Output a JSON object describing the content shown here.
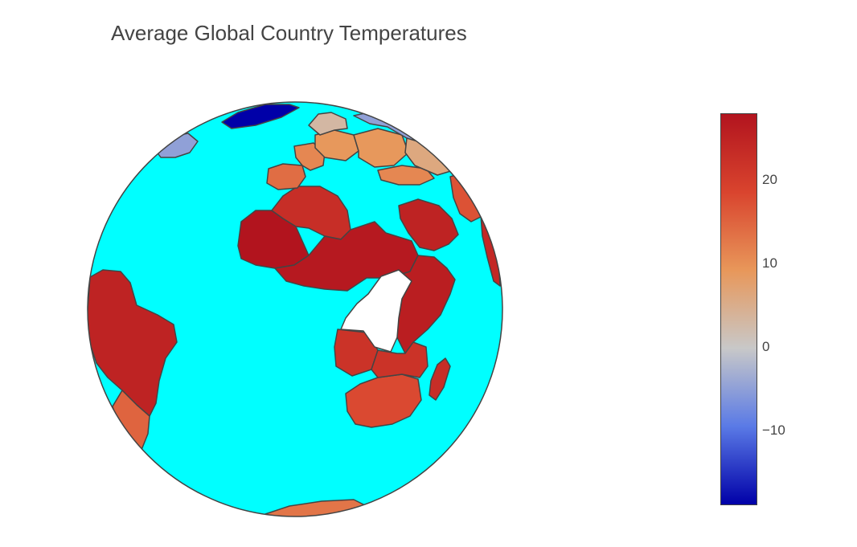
{
  "chart_data": {
    "type": "choropleth",
    "title": "Average Global Country Temperatures",
    "projection": "orthographic",
    "ocean_color": "#00ffff",
    "colorscale": [
      "#0000a8",
      "#5a7ae6",
      "#c8c8c8",
      "#e8975a",
      "#d9442e",
      "#b2141e"
    ],
    "colorbar": {
      "range": [
        -19,
        28
      ],
      "tick_values": [
        20,
        10,
        0,
        -10
      ],
      "tick_labels": [
        "20",
        "10",
        "0",
        "−10"
      ]
    },
    "regions": [
      {
        "name": "Brazil",
        "value": 25
      },
      {
        "name": "Nigeria",
        "value": 27
      },
      {
        "name": "Mali",
        "value": 28
      },
      {
        "name": "Algeria",
        "value": 23
      },
      {
        "name": "Saudi Arabia",
        "value": 25
      },
      {
        "name": "Angola",
        "value": 22
      },
      {
        "name": "South Africa",
        "value": 18
      },
      {
        "name": "Madagascar",
        "value": 23
      },
      {
        "name": "Spain",
        "value": 14
      },
      {
        "name": "France",
        "value": 11
      },
      {
        "name": "Germany",
        "value": 9
      },
      {
        "name": "Turkey",
        "value": 11
      },
      {
        "name": "Sweden",
        "value": 3
      },
      {
        "name": "Russia",
        "value": -5
      },
      {
        "name": "Greenland",
        "value": -19
      },
      {
        "name": "Canada",
        "value": -5
      },
      {
        "name": "Kazakhstan",
        "value": 6
      },
      {
        "name": "Iran",
        "value": 17
      },
      {
        "name": "India",
        "value": 24
      },
      {
        "name": "Argentina",
        "value": 15
      },
      {
        "name": "Antarctica",
        "value": 13
      }
    ]
  }
}
